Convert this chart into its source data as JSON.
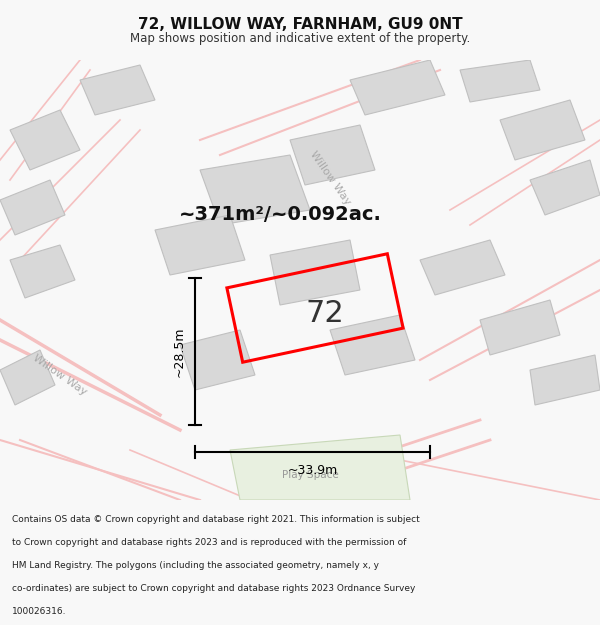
{
  "title": "72, WILLOW WAY, FARNHAM, GU9 0NT",
  "subtitle": "Map shows position and indicative extent of the property.",
  "area_text": "~371m²/~0.092ac.",
  "width_label": "~33.9m",
  "height_label": "~28.5m",
  "number_label": "72",
  "play_space_label": "Play Space",
  "willow_way_label": "Willow Way",
  "willow_way_left_label": "Willow Way",
  "footer_lines": [
    "Contains OS data © Crown copyright and database right 2021. This information is subject",
    "to Crown copyright and database rights 2023 and is reproduced with the permission of",
    "HM Land Registry. The polygons (including the associated geometry, namely x, y",
    "co-ordinates) are subject to Crown copyright and database rights 2023 Ordnance Survey",
    "100026316."
  ],
  "bg_color": "#f8f8f8",
  "map_bg": "#ffffff",
  "road_color_light": "#f5c0c0",
  "building_color": "#d8d8d8",
  "building_edge": "#c0c0c0",
  "plot_color": "#ff0000",
  "dimension_color": "#000000",
  "footer_color": "#222222"
}
